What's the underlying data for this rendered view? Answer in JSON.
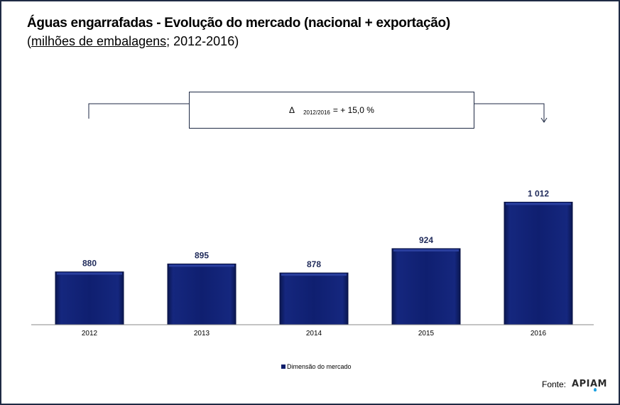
{
  "header": {
    "title": "Águas engarrafadas - Evolução do mercado (nacional + exportação)",
    "subtitle_open": "(",
    "subtitle_underlined": "milhões de embalagens",
    "subtitle_rest": "; 2012-2016)"
  },
  "annotation": {
    "delta_symbol": "Δ",
    "delta_period": "2012/2016",
    "delta_value": "=  + 15,0 %"
  },
  "chart_data": {
    "type": "bar",
    "categories": [
      "2012",
      "2013",
      "2014",
      "2015",
      "2016"
    ],
    "series": [
      {
        "name": "Dimensão do mercado",
        "values": [
          880,
          895,
          878,
          924,
          1012
        ]
      }
    ],
    "data_labels": [
      "880",
      "895",
      "878",
      "924",
      "1 012"
    ],
    "title": "Águas engarrafadas - Evolução do mercado (nacional + exportação)",
    "ylabel": "",
    "xlabel": "",
    "legend_position": "bottom",
    "grid": false,
    "bar_color": "#0d1d6b"
  },
  "footer": {
    "source_label": "Fonte:",
    "logo_text": "APIAM"
  }
}
